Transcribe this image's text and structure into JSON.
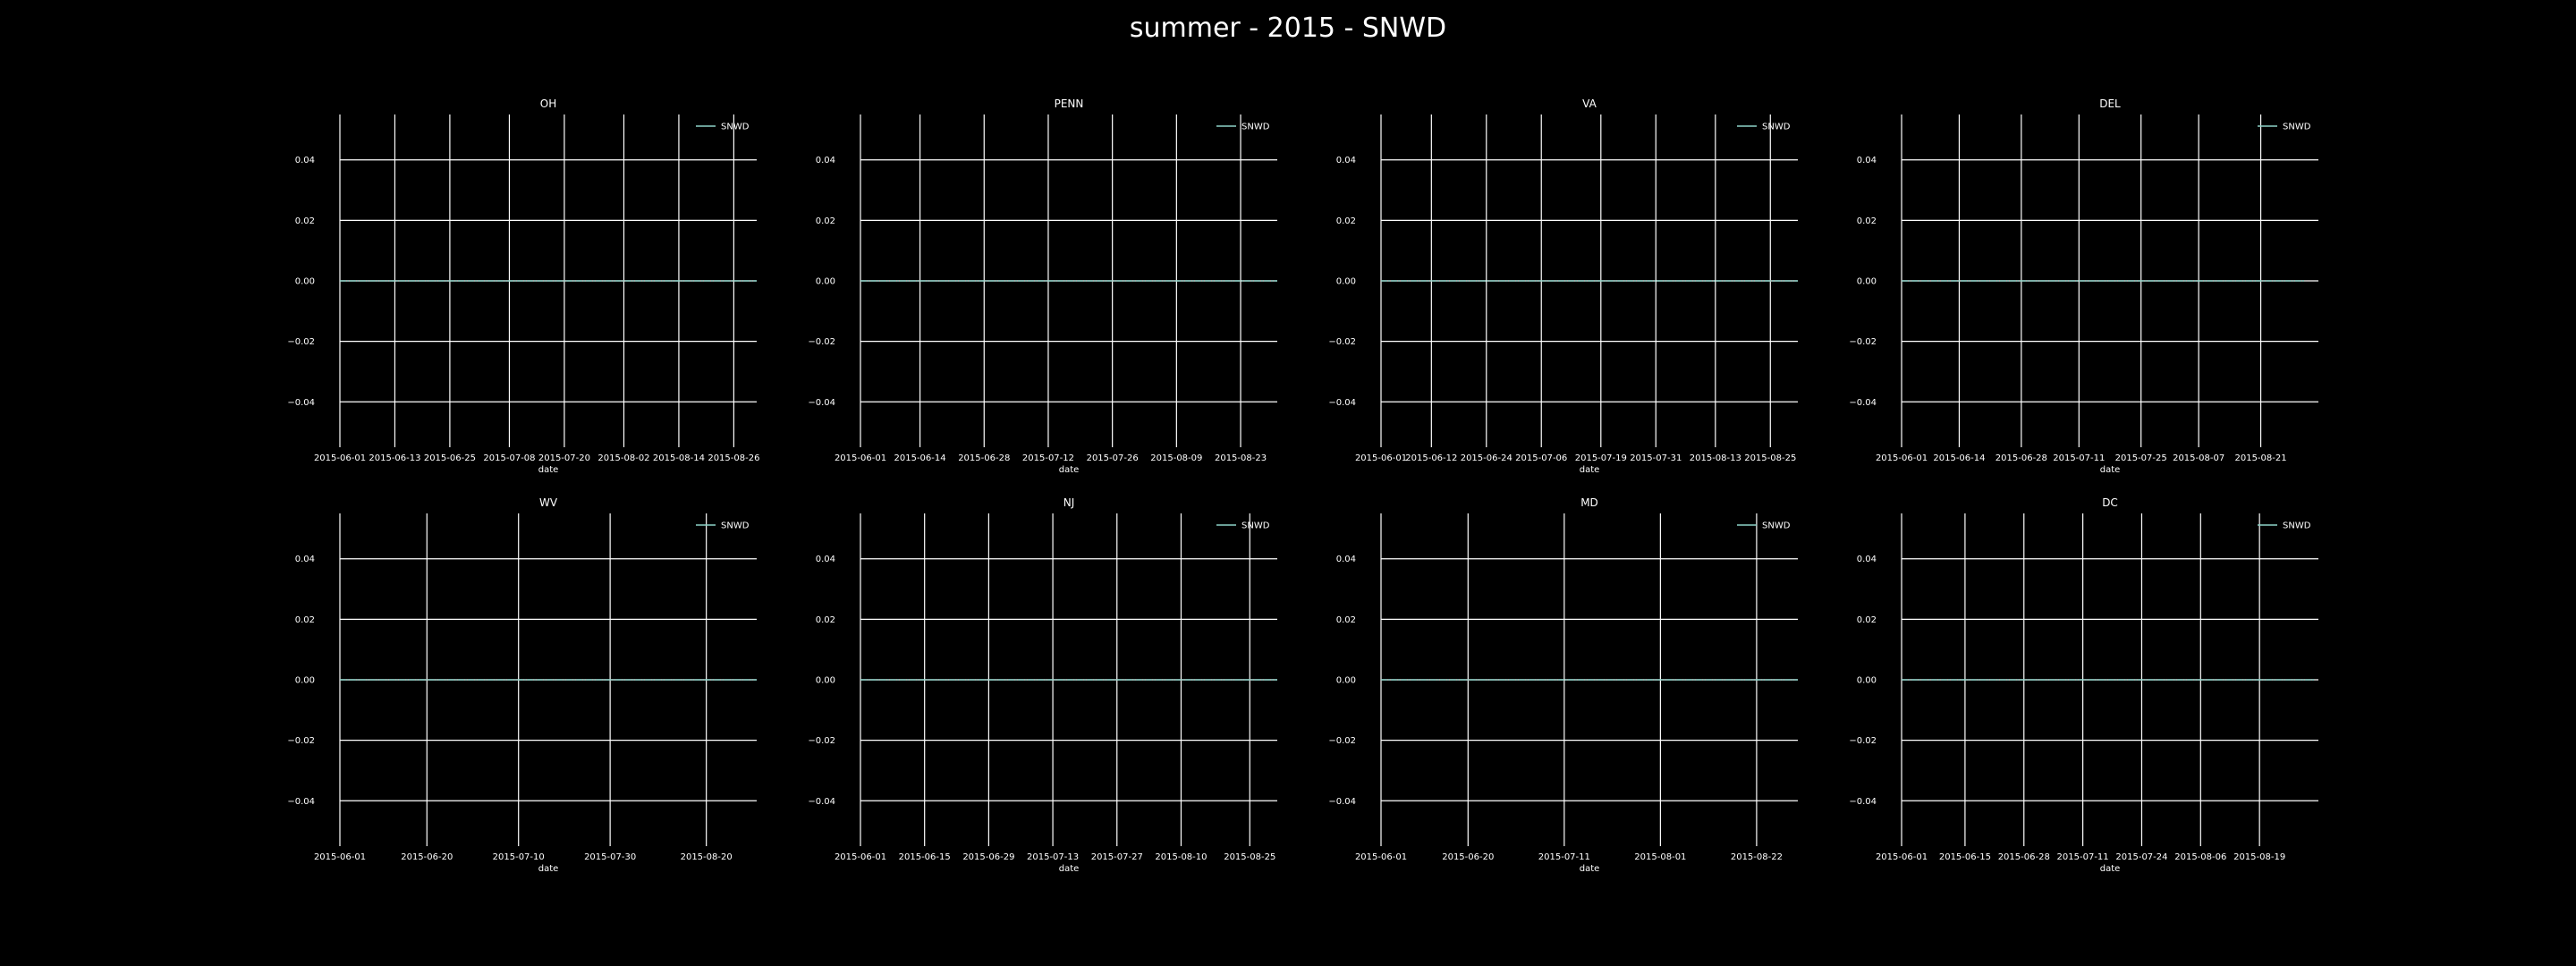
{
  "figure_title": "summer - 2015 - SNWD",
  "colors": {
    "background": "#000000",
    "grid": "#ffffff",
    "line": "#8dd3c7",
    "text": "#ffffff"
  },
  "chart_data": [
    {
      "type": "line",
      "title": "OH",
      "xlabel": "date",
      "ylabel": "",
      "x_start": "2015-06-01",
      "x_end": "2015-08-31",
      "x_ticks": [
        "2015-06-01",
        "2015-06-13",
        "2015-06-25",
        "2015-07-08",
        "2015-07-20",
        "2015-08-02",
        "2015-08-14",
        "2015-08-26"
      ],
      "y_ticks": [
        "0.04",
        "0.02",
        "0.00",
        "−0.02",
        "−0.04"
      ],
      "ylim": [
        -0.055,
        0.055
      ],
      "legend": "top-right",
      "grid": true,
      "series": [
        {
          "name": "SNWD",
          "start": "2015-06-01",
          "end": "2015-08-31",
          "value": 0.0
        }
      ]
    },
    {
      "type": "line",
      "title": "PENN",
      "xlabel": "date",
      "ylabel": "",
      "x_start": "2015-06-01",
      "x_end": "2015-08-31",
      "x_ticks": [
        "2015-06-01",
        "2015-06-14",
        "2015-06-28",
        "2015-07-12",
        "2015-07-26",
        "2015-08-09",
        "2015-08-23"
      ],
      "y_ticks": [
        "0.04",
        "0.02",
        "0.00",
        "−0.02",
        "−0.04"
      ],
      "ylim": [
        -0.055,
        0.055
      ],
      "legend": "top-right",
      "grid": true,
      "series": [
        {
          "name": "SNWD",
          "start": "2015-06-01",
          "end": "2015-08-31",
          "value": 0.0
        }
      ]
    },
    {
      "type": "line",
      "title": "VA",
      "xlabel": "date",
      "ylabel": "",
      "x_start": "2015-06-01",
      "x_end": "2015-08-31",
      "x_ticks": [
        "2015-06-01",
        "2015-06-12",
        "2015-06-24",
        "2015-07-06",
        "2015-07-19",
        "2015-07-31",
        "2015-08-13",
        "2015-08-25"
      ],
      "y_ticks": [
        "0.04",
        "0.02",
        "0.00",
        "−0.02",
        "−0.04"
      ],
      "ylim": [
        -0.055,
        0.055
      ],
      "legend": "top-right",
      "grid": true,
      "series": [
        {
          "name": "SNWD",
          "start": "2015-06-01",
          "end": "2015-08-31",
          "value": 0.0
        }
      ]
    },
    {
      "type": "line",
      "title": "DEL",
      "xlabel": "date",
      "ylabel": "",
      "x_start": "2015-06-01",
      "x_end": "2015-09-03",
      "x_ticks": [
        "2015-06-01",
        "2015-06-14",
        "2015-06-28",
        "2015-07-11",
        "2015-07-25",
        "2015-08-07",
        "2015-08-21"
      ],
      "y_ticks": [
        "0.04",
        "0.02",
        "0.00",
        "−0.02",
        "−0.04"
      ],
      "ylim": [
        -0.055,
        0.055
      ],
      "legend": "top-right",
      "grid": true,
      "series": [
        {
          "name": "SNWD",
          "start": "2015-06-01",
          "end": "2015-08-31",
          "value": 0.0
        }
      ]
    },
    {
      "type": "line",
      "title": "WV",
      "xlabel": "date",
      "ylabel": "",
      "x_start": "2015-06-01",
      "x_end": "2015-08-31",
      "x_ticks": [
        "2015-06-01",
        "2015-06-20",
        "2015-07-10",
        "2015-07-30",
        "2015-08-20"
      ],
      "y_ticks": [
        "0.04",
        "0.02",
        "0.00",
        "−0.02",
        "−0.04"
      ],
      "ylim": [
        -0.055,
        0.055
      ],
      "legend": "top-right",
      "grid": true,
      "series": [
        {
          "name": "SNWD",
          "start": "2015-06-01",
          "end": "2015-08-31",
          "value": 0.0
        }
      ]
    },
    {
      "type": "line",
      "title": "NJ",
      "xlabel": "date",
      "ylabel": "",
      "x_start": "2015-06-01",
      "x_end": "2015-08-31",
      "x_ticks": [
        "2015-06-01",
        "2015-06-15",
        "2015-06-29",
        "2015-07-13",
        "2015-07-27",
        "2015-08-10",
        "2015-08-25"
      ],
      "y_ticks": [
        "0.04",
        "0.02",
        "0.00",
        "−0.02",
        "−0.04"
      ],
      "ylim": [
        -0.055,
        0.055
      ],
      "legend": "top-right",
      "grid": true,
      "series": [
        {
          "name": "SNWD",
          "start": "2015-06-01",
          "end": "2015-08-31",
          "value": 0.0
        }
      ]
    },
    {
      "type": "line",
      "title": "MD",
      "xlabel": "date",
      "ylabel": "",
      "x_start": "2015-06-01",
      "x_end": "2015-08-31",
      "x_ticks": [
        "2015-06-01",
        "2015-06-20",
        "2015-07-11",
        "2015-08-01",
        "2015-08-22"
      ],
      "y_ticks": [
        "0.04",
        "0.02",
        "0.00",
        "−0.02",
        "−0.04"
      ],
      "ylim": [
        -0.055,
        0.055
      ],
      "legend": "top-right",
      "grid": true,
      "series": [
        {
          "name": "SNWD",
          "start": "2015-06-01",
          "end": "2015-08-31",
          "value": 0.0
        }
      ]
    },
    {
      "type": "line",
      "title": "DC",
      "xlabel": "date",
      "ylabel": "",
      "x_start": "2015-06-01",
      "x_end": "2015-09-01",
      "x_ticks": [
        "2015-06-01",
        "2015-06-15",
        "2015-06-28",
        "2015-07-11",
        "2015-07-24",
        "2015-08-06",
        "2015-08-19"
      ],
      "y_ticks": [
        "0.04",
        "0.02",
        "0.00",
        "−0.02",
        "−0.04"
      ],
      "ylim": [
        -0.055,
        0.055
      ],
      "legend": "top-right",
      "grid": true,
      "series": [
        {
          "name": "SNWD",
          "start": "2015-06-01",
          "end": "2015-08-31",
          "value": 0.0
        }
      ]
    }
  ]
}
